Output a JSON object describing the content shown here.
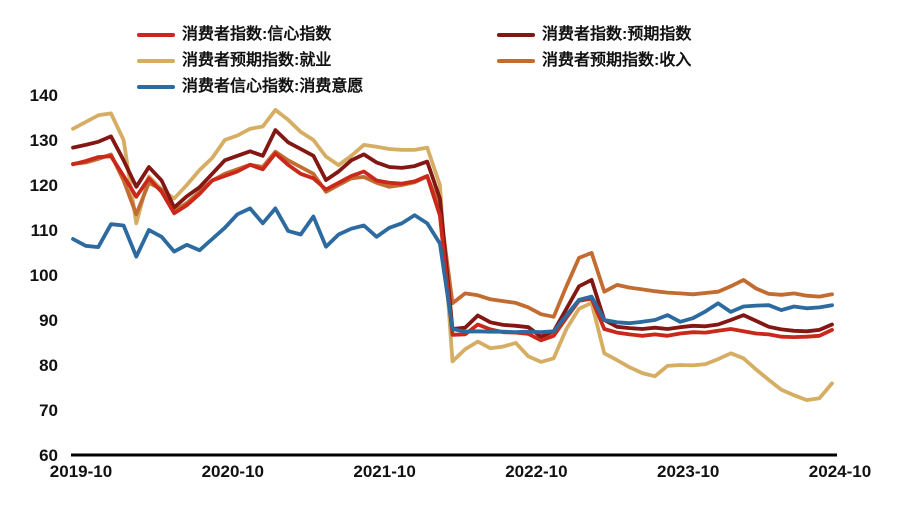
{
  "chart_data": {
    "type": "line",
    "title": "",
    "xlabel": "",
    "ylabel": "",
    "ylim": [
      60,
      140
    ],
    "y_ticks": [
      140,
      130,
      120,
      110,
      100,
      90,
      80,
      70,
      60
    ],
    "x_tick_labels": [
      "2019-10",
      "2020-10",
      "2021-10",
      "2022-10",
      "2023-10",
      "2024-10"
    ],
    "x_tick_indices": [
      0,
      12,
      24,
      36,
      48,
      60
    ],
    "grid": false,
    "legend_position": "top",
    "axis_color": "#000000",
    "x": [
      "2019-10",
      "2019-11",
      "2019-12",
      "2020-01",
      "2020-02",
      "2020-03",
      "2020-04",
      "2020-05",
      "2020-06",
      "2020-07",
      "2020-08",
      "2020-09",
      "2020-10",
      "2020-11",
      "2020-12",
      "2021-01",
      "2021-02",
      "2021-03",
      "2021-04",
      "2021-05",
      "2021-06",
      "2021-07",
      "2021-08",
      "2021-09",
      "2021-10",
      "2021-11",
      "2021-12",
      "2022-01",
      "2022-02",
      "2022-03",
      "2022-04",
      "2022-05",
      "2022-06",
      "2022-07",
      "2022-08",
      "2022-09",
      "2022-10",
      "2022-11",
      "2022-12",
      "2023-01",
      "2023-02",
      "2023-03",
      "2023-04",
      "2023-05",
      "2023-06",
      "2023-07",
      "2023-08",
      "2023-09",
      "2023-10",
      "2023-11",
      "2023-12",
      "2024-01",
      "2024-02",
      "2024-03",
      "2024-04",
      "2024-05",
      "2024-06",
      "2024-07",
      "2024-08",
      "2024-09",
      "2024-10"
    ],
    "series": [
      {
        "name": "消费者指数:信心指数",
        "color": "#c9281a",
        "values": [
          124.6,
          125.3,
          126.2,
          126.4,
          122.0,
          117.4,
          121.5,
          118.5,
          113.7,
          115.5,
          118.0,
          121.0,
          122.0,
          123.0,
          124.5,
          123.5,
          127.0,
          124.5,
          122.5,
          121.5,
          119.0,
          120.5,
          122.0,
          123.0,
          121.0,
          120.5,
          120.3,
          120.8,
          122.0,
          113.2,
          86.7,
          86.8,
          89.0,
          87.9,
          87.3,
          87.2,
          86.9,
          85.5,
          86.5,
          90.5,
          94.3,
          94.7,
          88.0,
          87.2,
          86.8,
          86.5,
          86.8,
          86.5,
          87.0,
          87.3,
          87.2,
          87.6,
          88.0,
          87.5,
          87.0,
          86.8,
          86.3,
          86.2,
          86.3,
          86.5,
          87.8
        ]
      },
      {
        "name": "消费者指数:预期指数",
        "color": "#821713",
        "values": [
          128.3,
          128.9,
          129.6,
          130.8,
          125.5,
          119.6,
          124.0,
          121.0,
          115.0,
          117.5,
          119.5,
          122.5,
          125.5,
          126.5,
          127.5,
          126.5,
          132.2,
          129.5,
          128.0,
          126.5,
          121.1,
          123.0,
          125.5,
          126.8,
          125.0,
          124.0,
          123.8,
          124.2,
          125.2,
          117.0,
          88.0,
          88.3,
          91.0,
          89.5,
          88.9,
          88.7,
          88.4,
          86.3,
          87.5,
          92.5,
          97.5,
          98.9,
          90.0,
          88.5,
          88.2,
          88.0,
          88.3,
          88.0,
          88.4,
          88.7,
          88.6,
          89.0,
          90.0,
          91.1,
          89.8,
          88.5,
          87.9,
          87.6,
          87.5,
          87.8,
          89.0
        ]
      },
      {
        "name": "消费者预期指数:就业",
        "color": "#d5ad63",
        "values": [
          132.5,
          134.0,
          135.5,
          135.9,
          130.0,
          111.5,
          121.9,
          119.0,
          117.0,
          120.0,
          123.3,
          126.0,
          130.0,
          131.0,
          132.5,
          133.0,
          136.7,
          134.5,
          131.8,
          130.0,
          126.3,
          124.4,
          126.5,
          128.9,
          128.5,
          128.0,
          127.8,
          127.8,
          128.3,
          120.0,
          80.8,
          83.5,
          85.2,
          83.7,
          84.1,
          84.9,
          81.9,
          80.7,
          81.5,
          88.0,
          92.5,
          93.8,
          82.6,
          81.1,
          79.5,
          78.2,
          77.5,
          79.8,
          80.0,
          79.9,
          80.2,
          81.3,
          82.6,
          81.5,
          79.0,
          76.7,
          74.5,
          73.3,
          72.2,
          72.6,
          75.9
        ]
      },
      {
        "name": "消费者预期指数:收入",
        "color": "#c26c31",
        "values": [
          124.7,
          125.0,
          125.8,
          126.8,
          121.0,
          113.5,
          120.5,
          119.0,
          114.2,
          116.0,
          118.5,
          121.0,
          122.5,
          123.5,
          124.5,
          124.0,
          127.4,
          125.5,
          124.0,
          122.5,
          118.5,
          120.0,
          121.5,
          121.8,
          120.5,
          119.6,
          120.0,
          120.6,
          121.9,
          115.0,
          93.7,
          95.9,
          95.5,
          94.6,
          94.2,
          93.8,
          92.8,
          91.3,
          90.7,
          97.5,
          103.8,
          104.9,
          96.3,
          97.8,
          97.2,
          96.8,
          96.4,
          96.1,
          95.9,
          95.7,
          96.0,
          96.3,
          97.5,
          98.9,
          97.0,
          95.8,
          95.6,
          95.9,
          95.4,
          95.2,
          95.7
        ]
      },
      {
        "name": "消费者信心指数:消费意愿",
        "color": "#2c6aa0",
        "values": [
          108.0,
          106.5,
          106.2,
          111.3,
          111.0,
          104.1,
          110.0,
          108.5,
          105.2,
          106.7,
          105.5,
          108.0,
          110.5,
          113.5,
          114.8,
          111.5,
          114.8,
          109.8,
          109.0,
          113.0,
          106.3,
          109.0,
          110.3,
          111.0,
          108.5,
          110.5,
          111.5,
          113.3,
          111.5,
          107.0,
          88.0,
          87.4,
          87.5,
          87.4,
          87.4,
          87.3,
          87.4,
          87.3,
          87.5,
          91.0,
          94.5,
          95.2,
          90.0,
          89.5,
          89.3,
          89.6,
          90.0,
          91.1,
          89.6,
          90.4,
          91.9,
          93.7,
          91.8,
          93.0,
          93.2,
          93.3,
          92.2,
          93.0,
          92.6,
          92.8,
          93.3
        ]
      }
    ]
  }
}
